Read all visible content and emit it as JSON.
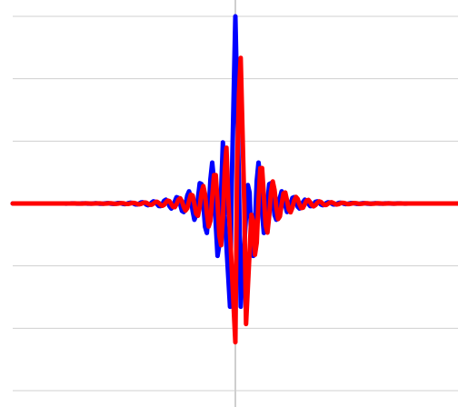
{
  "chart_data": {
    "type": "line",
    "title": "",
    "xlabel": "",
    "ylabel": "",
    "xlim": [
      -50,
      50
    ],
    "ylim": [
      -1.2,
      1.2
    ],
    "grid": true,
    "legend": "none",
    "y_gridlines": [
      -1.2,
      -0.8,
      -0.4,
      0.4,
      0.8,
      1.2
    ],
    "x_axis_at": 0,
    "x_step": 0.4,
    "series": [
      {
        "color": "#0000ff",
        "center": 0,
        "peak": 1.2,
        "y": []
      },
      {
        "color": "#ff0000",
        "center": 1.1,
        "peak": 1.05,
        "y": []
      }
    ]
  }
}
